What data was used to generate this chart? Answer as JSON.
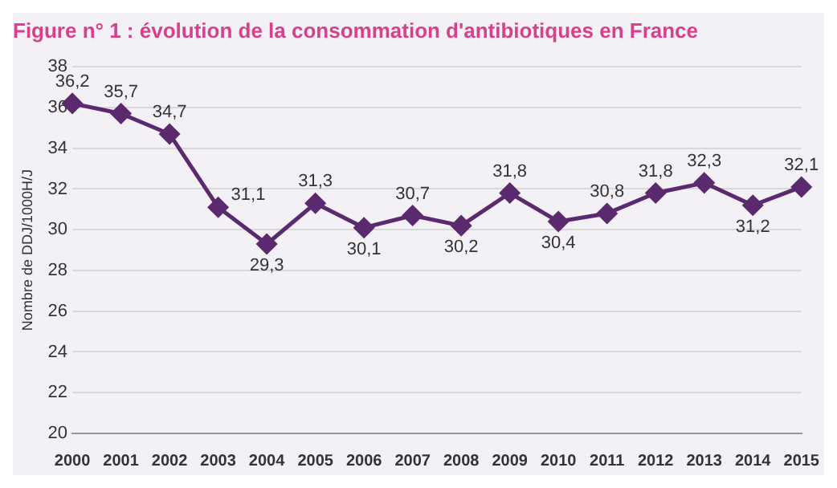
{
  "chart_data": {
    "type": "line",
    "title": "Figure n° 1 : évolution de la consommation d'antibiotiques en France",
    "ylabel": "Nombre de DDJ/1000H/J",
    "categories": [
      "2000",
      "2001",
      "2002",
      "2003",
      "2004",
      "2005",
      "2006",
      "2007",
      "2008",
      "2009",
      "2010",
      "2011",
      "2012",
      "2013",
      "2014",
      "2015"
    ],
    "series": [
      {
        "color": "#5b2a6e",
        "values": [
          36.2,
          35.7,
          34.7,
          31.1,
          29.3,
          31.3,
          30.1,
          30.7,
          30.2,
          31.8,
          30.4,
          30.8,
          31.8,
          32.3,
          31.2,
          32.1
        ],
        "value_labels": [
          "36,2",
          "35,7",
          "34,7",
          "31,1",
          "29,3",
          "31,3",
          "30,1",
          "30,7",
          "30,2",
          "31,8",
          "30,4",
          "30,8",
          "31,8",
          "32,3",
          "31,2",
          "32,1"
        ]
      }
    ],
    "ylim": [
      20,
      38
    ],
    "yticks": [
      20,
      22,
      24,
      26,
      28,
      30,
      32,
      34,
      36,
      38
    ],
    "grid": "y",
    "marker": "diamond",
    "line_style": "solid",
    "legend": false
  }
}
